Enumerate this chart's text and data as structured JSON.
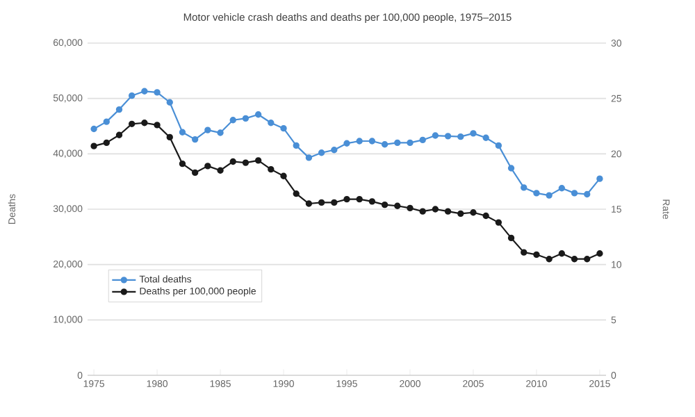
{
  "chart_data": {
    "type": "line",
    "title": "Motor vehicle crash deaths and deaths per 100,000 people, 1975–2015",
    "ylabel": "Deaths",
    "y2label": "Rate",
    "x": [
      1975,
      1976,
      1977,
      1978,
      1979,
      1980,
      1981,
      1982,
      1983,
      1984,
      1985,
      1986,
      1987,
      1988,
      1989,
      1990,
      1991,
      1992,
      1993,
      1994,
      1995,
      1996,
      1997,
      1998,
      1999,
      2000,
      2001,
      2002,
      2003,
      2004,
      2005,
      2006,
      2007,
      2008,
      2009,
      2010,
      2011,
      2012,
      2013,
      2014,
      2015
    ],
    "series": [
      {
        "name": "Total deaths",
        "color": "#4a8fd6",
        "values": [
          44500,
          45800,
          48000,
          50500,
          51300,
          51100,
          49300,
          43900,
          42600,
          44300,
          43800,
          46100,
          46400,
          47100,
          45600,
          44600,
          41500,
          39300,
          40200,
          40700,
          41900,
          42300,
          42300,
          41700,
          42000,
          42000,
          42500,
          43300,
          43200,
          43100,
          43700,
          42900,
          41500,
          37400,
          33900,
          32900,
          32500,
          33800,
          32900,
          32700,
          35500
        ]
      },
      {
        "name": "Deaths per 100,000 people",
        "color": "#1a1a1a",
        "axis": "y2",
        "values": [
          20.7,
          21.0,
          21.7,
          22.7,
          22.8,
          22.6,
          21.5,
          19.1,
          18.3,
          18.9,
          18.5,
          19.3,
          19.2,
          19.4,
          18.6,
          18.0,
          16.4,
          15.5,
          15.6,
          15.6,
          15.9,
          15.9,
          15.7,
          15.4,
          15.3,
          15.1,
          14.8,
          15.0,
          14.8,
          14.6,
          14.7,
          14.4,
          13.8,
          12.4,
          11.1,
          10.9,
          10.5,
          11.0,
          10.5,
          10.5,
          11.0
        ]
      }
    ],
    "xlim": [
      1974.5,
      2015.5
    ],
    "xticks": [
      1975,
      1980,
      1985,
      1990,
      1995,
      2000,
      2005,
      2010,
      2015
    ],
    "ylim": [
      0,
      60000
    ],
    "yticks": [
      {
        "value": 0,
        "label": "0"
      },
      {
        "value": 10000,
        "label": "10,000"
      },
      {
        "value": 20000,
        "label": "20,000"
      },
      {
        "value": 30000,
        "label": "30,000"
      },
      {
        "value": 40000,
        "label": "40,000"
      },
      {
        "value": 50000,
        "label": "50,000"
      },
      {
        "value": 60000,
        "label": "60,000"
      }
    ],
    "y2lim": [
      0,
      30
    ],
    "y2ticks": [
      0,
      5,
      10,
      15,
      20,
      25,
      30
    ],
    "grid": "y",
    "legend": "bottom left",
    "marker": "circle",
    "line_style": "solid"
  }
}
